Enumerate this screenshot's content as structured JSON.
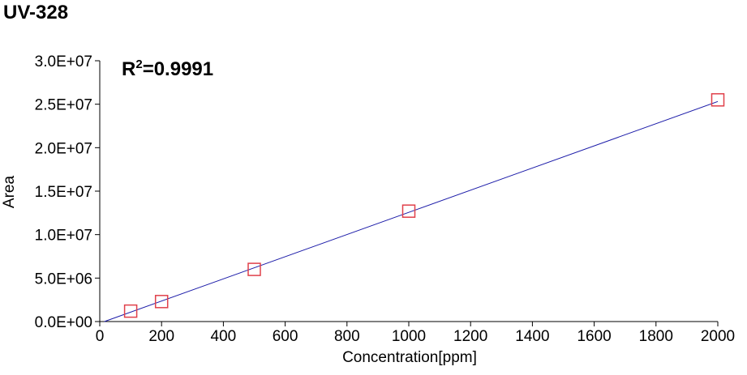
{
  "chart_data": {
    "type": "scatter",
    "title": "UV-328",
    "xlabel": "Concentration[ppm]",
    "ylabel": "Area",
    "xlim": [
      0,
      2000
    ],
    "ylim": [
      0,
      30000000
    ],
    "x_ticks": [
      "0",
      "200",
      "400",
      "600",
      "800",
      "1000",
      "1200",
      "1400",
      "1600",
      "1800",
      "2000"
    ],
    "y_ticks": [
      "0.0E+00",
      "5.0E+06",
      "1.0E+07",
      "1.5E+07",
      "2.0E+07",
      "2.5E+07",
      "3.0E+07"
    ],
    "grid": false,
    "annotation": {
      "r_label": "R",
      "superscript": "2",
      "value_text": "=0.9991"
    },
    "series": [
      {
        "marker": "square",
        "color": "#e0404a",
        "points": [
          {
            "x": 100,
            "y": 1200000
          },
          {
            "x": 200,
            "y": 2300000
          },
          {
            "x": 500,
            "y": 6000000
          },
          {
            "x": 1000,
            "y": 12700000
          },
          {
            "x": 2000,
            "y": 25500000
          }
        ]
      }
    ],
    "trendline": {
      "color": "#1a1aa8",
      "x_start": 15,
      "x_end": 2000,
      "slope": 12750,
      "intercept": -190000
    }
  }
}
